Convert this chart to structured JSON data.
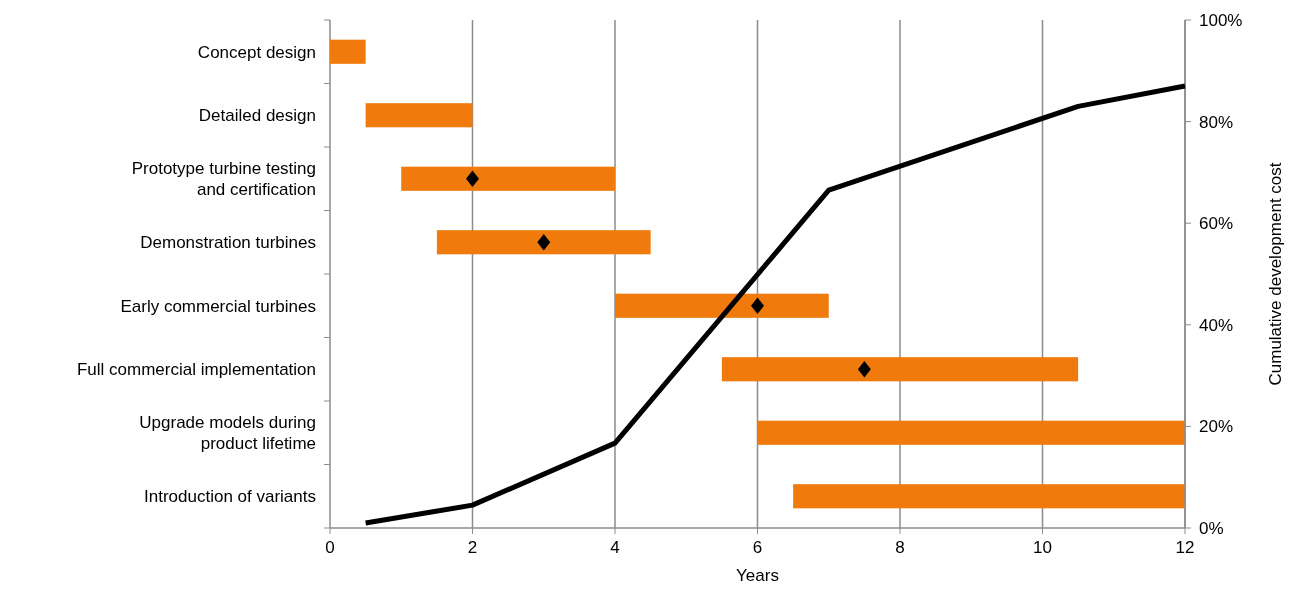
{
  "chart_data": [
    {
      "type": "bar",
      "orientation": "horizontal",
      "xlabel": "Years",
      "categories": [
        "Concept design",
        "Detailed design",
        "Prototype turbine testing and certification",
        "Demonstration turbines",
        "Early commercial turbines",
        "Full commercial implementation",
        "Upgrade models during product lifetime",
        "Introduction of variants"
      ],
      "series": [
        {
          "type": "bar",
          "color": "#f07a0b",
          "base": [
            0,
            0.5,
            1,
            1.5,
            4,
            5.5,
            6,
            6.5
          ],
          "values": [
            0.5,
            1.5,
            3,
            3,
            3,
            5,
            6,
            5.5
          ]
        },
        {
          "type": "scatter",
          "color": "#000000",
          "marker": "diamond",
          "values": [
            null,
            null,
            2,
            3,
            6,
            7.5,
            null,
            null
          ]
        }
      ],
      "xlim": [
        0,
        12
      ],
      "xticks": [
        0,
        2,
        4,
        6,
        8,
        10,
        12
      ],
      "grid": "x"
    },
    {
      "type": "line",
      "y2label": "Cumulative development cost",
      "tick_labels": "y",
      "series": [
        {
          "color": "#000000",
          "axis": "y2",
          "marker": "none",
          "line_style": "solid",
          "x": [
            0.5,
            2,
            4,
            7,
            10.5,
            12
          ],
          "values": [
            1,
            4.5,
            16.7,
            66.5,
            83,
            87
          ]
        }
      ],
      "xlim": [
        0,
        12
      ],
      "y2lim": [
        0,
        100
      ],
      "y2ticks": [
        {
          "value": 0,
          "label": "0%"
        },
        {
          "value": 20,
          "label": "20%"
        },
        {
          "value": 40,
          "label": "40%"
        },
        {
          "value": 60,
          "label": "60%"
        },
        {
          "value": 80,
          "label": "80%"
        },
        {
          "value": 100,
          "label": "100%"
        }
      ]
    }
  ]
}
